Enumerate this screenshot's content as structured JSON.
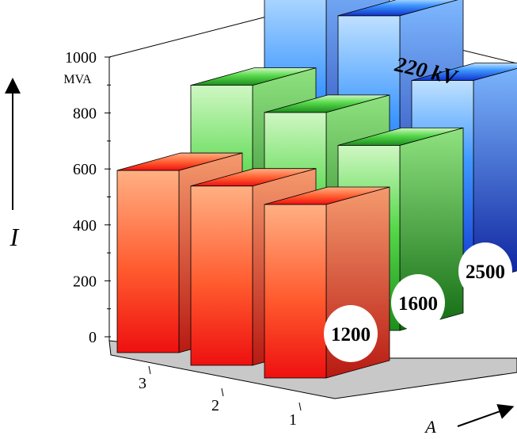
{
  "chart_data": {
    "type": "bar3d",
    "title": "220 kV",
    "ylabel": "I",
    "yunit": "MVA",
    "xlabel": "A",
    "ylim": [
      0,
      1000
    ],
    "yticks": [
      0,
      200,
      400,
      600,
      800,
      1000
    ],
    "categories": [
      "3",
      "2",
      "1"
    ],
    "series": [
      {
        "name": "1200",
        "color": "#ff2a1a",
        "values": [
          630,
          620,
          600
        ]
      },
      {
        "name": "1600",
        "color": "#22b322",
        "values": [
          760,
          710,
          640
        ]
      },
      {
        "name": "2500",
        "color": "#1f7fff",
        "values": [
          960,
          880,
          700
        ]
      }
    ]
  }
}
